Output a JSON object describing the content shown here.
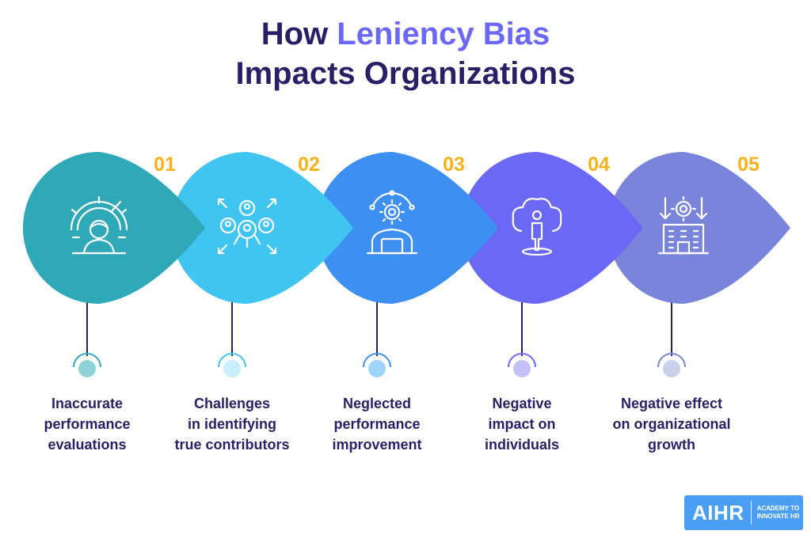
{
  "title": {
    "prefix": "How ",
    "highlight": "Leniency Bias",
    "line2": "Impacts Organizations"
  },
  "steps": [
    {
      "number": "01",
      "label_lines": [
        "Inaccurate",
        "performance",
        "evaluations"
      ],
      "icon": "performance-gauge-icon",
      "color": "#2fa8b8",
      "dot_color": "#8fd3d9",
      "ring_color": "#2fa8b8"
    },
    {
      "number": "02",
      "label_lines": [
        "Challenges",
        "in identifying",
        "true contributors"
      ],
      "icon": "team-network-icon",
      "color": "#40c4f0",
      "dot_color": "#c9eefb",
      "ring_color": "#40c4f0"
    },
    {
      "number": "03",
      "label_lines": [
        "Neglected",
        "performance",
        "improvement"
      ],
      "icon": "person-gear-icon",
      "color": "#3e8ff2",
      "dot_color": "#9ed4fb",
      "ring_color": "#3e8ff2"
    },
    {
      "number": "04",
      "label_lines": [
        "Negative",
        "impact on",
        "individuals"
      ],
      "icon": "person-tree-icon",
      "color": "#6b68f5",
      "dot_color": "#c3c0f8",
      "ring_color": "#6b68f5"
    },
    {
      "number": "05",
      "label_lines": [
        "Negative effect",
        "on organizational",
        "growth"
      ],
      "icon": "building-decline-icon",
      "color": "#7a84db",
      "dot_color": "#cdd0ec",
      "ring_color": "#7a84db"
    }
  ],
  "logo": {
    "main": "AIHR",
    "sub_line1": "ACADEMY TO",
    "sub_line2": "INNOVATE HR",
    "color": "#4a9ff5"
  },
  "colors": {
    "title": "#2a1f66",
    "highlight": "#6b68f5",
    "number": "#f5b21b",
    "stem": "#2a1f66"
  }
}
